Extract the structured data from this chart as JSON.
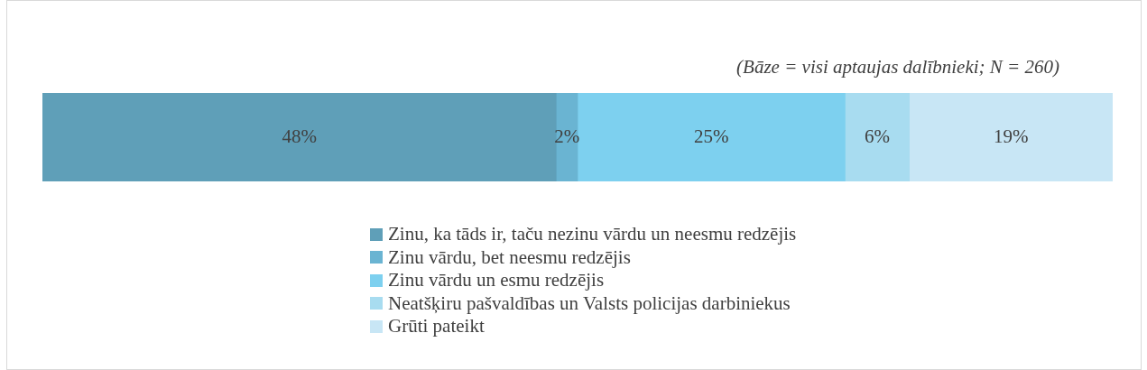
{
  "chart_data": {
    "type": "bar",
    "orientation": "horizontal",
    "stacked": true,
    "categories": [
      null
    ],
    "series": [
      {
        "name": "Zinu, ka tāds ir, taču nezinu vārdu un neesmu redzējis",
        "color": "#5f9fb8",
        "values": [
          48
        ],
        "value_labels": [
          "48%"
        ]
      },
      {
        "name": "Zinu vārdu, bet neesmu redzējis",
        "color": "#6ab4d2",
        "values": [
          2
        ],
        "value_labels": [
          "2%"
        ]
      },
      {
        "name": "Zinu vārdu un esmu redzējis",
        "color": "#7dd0ef",
        "values": [
          25
        ],
        "value_labels": [
          "25%"
        ]
      },
      {
        "name": "Neatšķiru pašvaldības un Valsts policijas darbiniekus",
        "color": "#a8dcf0",
        "values": [
          6
        ],
        "value_labels": [
          "6%"
        ]
      },
      {
        "name": "Grūti pateikt",
        "color": "#c8e6f5",
        "values": [
          19
        ],
        "value_labels": [
          "19%"
        ]
      }
    ],
    "legend": "bottom",
    "annotations": [
      "(Bāze = visi aptaujas dalībnieki; N = 260)"
    ]
  }
}
